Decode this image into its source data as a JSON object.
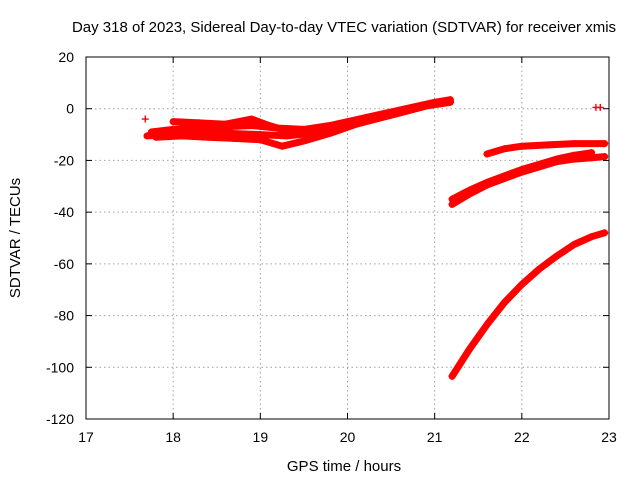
{
  "chart_data": {
    "type": "scatter",
    "title": "Day 318 of 2023, Sidereal Day-to-day VTEC variation (SDTVAR) for receiver xmis",
    "xlabel": "GPS time / hours",
    "ylabel": "SDTVAR / TECUs",
    "xlim": [
      17,
      23
    ],
    "ylim": [
      -120,
      20
    ],
    "x_ticks": [
      "17",
      "18",
      "19",
      "20",
      "21",
      "22",
      "23"
    ],
    "y_ticks": [
      "-120",
      "-100",
      "-80",
      "-60",
      "-40",
      "-20",
      "0",
      "20"
    ],
    "grid": true,
    "marker": "plus",
    "color": "#ff0000",
    "legend": "none",
    "series": [
      {
        "points": [
          [
            17.7,
            -10.5
          ],
          [
            18.0,
            -10.0
          ],
          [
            18.3,
            -9.0
          ],
          [
            18.6,
            -9.5
          ],
          [
            19.0,
            -10.0
          ],
          [
            19.3,
            -10.5
          ],
          [
            19.6,
            -9.5
          ],
          [
            19.9,
            -7.0
          ],
          [
            20.2,
            -4.0
          ],
          [
            20.5,
            -1.5
          ],
          [
            20.8,
            0.5
          ],
          [
            21.0,
            2.0
          ],
          [
            21.18,
            3.0
          ]
        ]
      },
      {
        "points": [
          [
            17.75,
            -9.0
          ],
          [
            18.0,
            -8.0
          ],
          [
            18.3,
            -7.5
          ],
          [
            18.6,
            -7.0
          ],
          [
            18.9,
            -6.5
          ],
          [
            19.2,
            -7.5
          ],
          [
            19.5,
            -8.0
          ],
          [
            19.8,
            -6.5
          ],
          [
            20.2,
            -3.5
          ],
          [
            20.6,
            -0.5
          ],
          [
            21.0,
            2.5
          ],
          [
            21.18,
            3.5
          ]
        ]
      },
      {
        "points": [
          [
            17.8,
            -11.0
          ],
          [
            18.1,
            -10.5
          ],
          [
            18.4,
            -11.0
          ],
          [
            18.7,
            -11.5
          ],
          [
            19.0,
            -12.0
          ],
          [
            19.25,
            -14.5
          ],
          [
            19.5,
            -12.5
          ],
          [
            19.8,
            -9.5
          ],
          [
            20.1,
            -6.0
          ],
          [
            20.5,
            -2.5
          ],
          [
            20.9,
            1.0
          ],
          [
            21.18,
            2.5
          ]
        ]
      },
      {
        "points": [
          [
            18.0,
            -5.0
          ],
          [
            18.3,
            -5.5
          ],
          [
            18.6,
            -6.0
          ],
          [
            18.9,
            -4.0
          ],
          [
            19.1,
            -6.5
          ],
          [
            19.3,
            -8.5
          ],
          [
            19.6,
            -8.0
          ]
        ]
      },
      {
        "points": [
          [
            21.6,
            -17.5
          ],
          [
            21.8,
            -15.5
          ],
          [
            22.0,
            -14.5
          ],
          [
            22.3,
            -14.0
          ],
          [
            22.6,
            -13.5
          ],
          [
            22.95,
            -13.5
          ]
        ]
      },
      {
        "points": [
          [
            21.2,
            -35.0
          ],
          [
            21.4,
            -31.5
          ],
          [
            21.6,
            -28.5
          ],
          [
            21.8,
            -26.0
          ],
          [
            22.0,
            -23.5
          ],
          [
            22.2,
            -21.5
          ],
          [
            22.4,
            -19.5
          ],
          [
            22.6,
            -18.0
          ],
          [
            22.8,
            -17.0
          ]
        ]
      },
      {
        "points": [
          [
            21.2,
            -37.0
          ],
          [
            21.4,
            -33.0
          ],
          [
            21.6,
            -29.5
          ],
          [
            21.8,
            -27.0
          ],
          [
            22.0,
            -24.5
          ],
          [
            22.2,
            -22.5
          ],
          [
            22.4,
            -20.5
          ],
          [
            22.6,
            -19.5
          ],
          [
            22.8,
            -19.0
          ],
          [
            22.95,
            -18.5
          ]
        ]
      },
      {
        "points": [
          [
            21.2,
            -103.5
          ],
          [
            21.4,
            -93.0
          ],
          [
            21.6,
            -83.5
          ],
          [
            21.8,
            -75.0
          ],
          [
            22.0,
            -68.0
          ],
          [
            22.2,
            -62.0
          ],
          [
            22.4,
            -57.0
          ],
          [
            22.6,
            -52.5
          ],
          [
            22.8,
            -49.5
          ],
          [
            22.95,
            -48.0
          ]
        ]
      },
      {
        "points": [
          [
            17.68,
            -4.0
          ],
          [
            22.85,
            0.5
          ],
          [
            22.9,
            0.5
          ]
        ]
      }
    ]
  }
}
